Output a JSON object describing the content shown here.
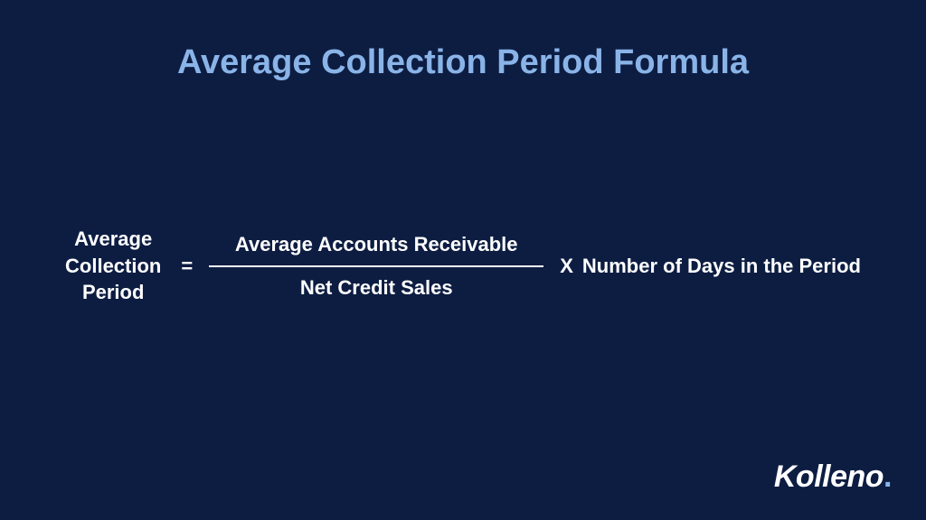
{
  "slide": {
    "title": "Average Collection Period Formula",
    "background_color": "#0d1d42",
    "title_color": "#8ab4e8",
    "text_color": "#ffffff",
    "title_fontsize": 38,
    "formula_fontsize": 22
  },
  "formula": {
    "lhs_line1": "Average",
    "lhs_line2": "Collection",
    "lhs_line3": "Period",
    "equals": "=",
    "numerator": "Average Accounts Receivable",
    "denominator": "Net Credit Sales",
    "multiply": "X",
    "rhs": "Number of Days in the Period",
    "fraction_line_width": 370,
    "fraction_line_color": "#ffffff"
  },
  "branding": {
    "logo_text": "Kolleno",
    "logo_dot": ".",
    "logo_color": "#ffffff",
    "logo_dot_color": "#8ab4e8",
    "logo_fontsize": 34
  }
}
